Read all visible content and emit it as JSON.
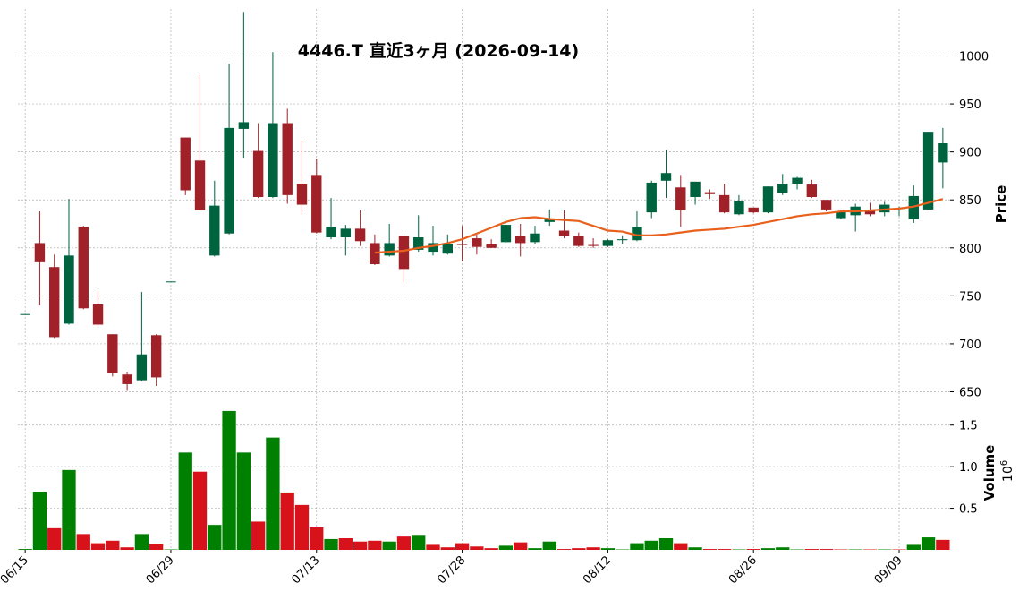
{
  "chart_data": {
    "type": "candlestick",
    "title": "4446.T  直近3ヶ月  (2026-09-14)",
    "categories": [
      "06/15",
      null,
      null,
      null,
      null,
      null,
      null,
      null,
      null,
      null,
      "06/29",
      null,
      null,
      null,
      null,
      null,
      null,
      null,
      null,
      null,
      "07/13",
      null,
      null,
      null,
      null,
      null,
      null,
      null,
      null,
      null,
      "07/28",
      null,
      null,
      null,
      null,
      null,
      null,
      null,
      null,
      null,
      "08/12",
      null,
      null,
      null,
      null,
      null,
      null,
      null,
      null,
      null,
      "08/26",
      null,
      null,
      null,
      null,
      null,
      null,
      null,
      null,
      null,
      "09/09",
      null,
      null,
      null
    ],
    "open": [
      731,
      805,
      780,
      721,
      822,
      741,
      710,
      668,
      662,
      709,
      765,
      915,
      891,
      792,
      815,
      924,
      901,
      853,
      930,
      867,
      876,
      811,
      811,
      820,
      805,
      792,
      812,
      798,
      796,
      794,
      804,
      810,
      804,
      806,
      812,
      806,
      827,
      818,
      812,
      803,
      802,
      808,
      808,
      837,
      870,
      863,
      853,
      858,
      855,
      835,
      842,
      837,
      857,
      867,
      866,
      850,
      831,
      834,
      839,
      837,
      839,
      830,
      840,
      889
    ],
    "high": [
      731,
      838,
      793,
      851,
      823,
      755,
      710,
      671,
      754,
      710,
      765,
      915,
      980,
      870,
      992,
      1046,
      930,
      1004,
      945,
      911,
      893,
      852,
      824,
      839,
      814,
      825,
      813,
      834,
      823,
      814,
      823,
      814,
      809,
      831,
      825,
      823,
      840,
      839,
      816,
      810,
      809,
      813,
      838,
      870,
      902,
      876,
      869,
      861,
      867,
      855,
      842,
      864,
      877,
      874,
      871,
      850,
      840,
      846,
      847,
      848,
      843,
      865,
      921,
      925
    ],
    "low": [
      731,
      740,
      706,
      720,
      736,
      717,
      666,
      651,
      661,
      656,
      765,
      855,
      839,
      791,
      814,
      894,
      852,
      852,
      846,
      835,
      815,
      809,
      792,
      802,
      782,
      791,
      764,
      796,
      792,
      793,
      786,
      793,
      800,
      805,
      791,
      804,
      823,
      810,
      801,
      800,
      801,
      804,
      807,
      831,
      852,
      822,
      845,
      851,
      836,
      834,
      836,
      836,
      855,
      861,
      852,
      838,
      830,
      817,
      833,
      833,
      833,
      826,
      839,
      862
    ],
    "close": [
      731,
      785,
      707,
      792,
      737,
      720,
      670,
      658,
      689,
      665,
      765,
      860,
      839,
      844,
      925,
      931,
      853,
      930,
      855,
      845,
      816,
      822,
      820,
      807,
      783,
      805,
      778,
      811,
      805,
      804,
      803,
      801,
      800,
      824,
      805,
      815,
      830,
      812,
      802,
      802,
      808,
      809,
      822,
      868,
      878,
      839,
      869,
      856,
      837,
      849,
      837,
      864,
      867,
      873,
      853,
      840,
      838,
      843,
      835,
      845,
      840,
      854,
      921,
      909
    ],
    "up_color": "#006340",
    "down_color": "#a02128",
    "ma": {
      "color": "#e8601c",
      "values": [
        null,
        null,
        null,
        null,
        null,
        null,
        null,
        null,
        null,
        null,
        null,
        null,
        null,
        null,
        null,
        null,
        null,
        null,
        null,
        null,
        null,
        null,
        null,
        null,
        795,
        796,
        797,
        800,
        802,
        805,
        809,
        815,
        821,
        827,
        831,
        832,
        830,
        829,
        828,
        823,
        818,
        817,
        813,
        813,
        814,
        816,
        818,
        819,
        820,
        822,
        824,
        827,
        830,
        833,
        835,
        836,
        838,
        838,
        839,
        840,
        841,
        843,
        847,
        851
      ]
    },
    "volume": {
      "up_color": "#008000",
      "down_color": "#d8121a",
      "values": [
        0.01,
        0.7,
        0.26,
        0.96,
        0.19,
        0.08,
        0.11,
        0.03,
        0.19,
        0.07,
        0.005,
        1.17,
        0.94,
        0.3,
        1.67,
        1.17,
        0.34,
        1.35,
        0.69,
        0.54,
        0.27,
        0.13,
        0.14,
        0.1,
        0.11,
        0.1,
        0.16,
        0.18,
        0.06,
        0.03,
        0.08,
        0.04,
        0.02,
        0.05,
        0.09,
        0.02,
        0.1,
        0.01,
        0.02,
        0.03,
        0.02,
        0.005,
        0.08,
        0.11,
        0.14,
        0.08,
        0.03,
        0.01,
        0.01,
        0.005,
        0.01,
        0.02,
        0.03,
        0.005,
        0.01,
        0.01,
        0.005,
        0.005,
        0.005,
        0.005,
        0.005,
        0.06,
        0.15,
        0.12
      ]
    },
    "ylim": [
      643,
      1049
    ],
    "yticks": [
      650,
      700,
      750,
      800,
      850,
      900,
      950,
      1000
    ],
    "ylabel": "Price",
    "y2lim": [
      0,
      1.82
    ],
    "y2ticks": [
      0.5,
      {
        "value": 1,
        "label": "1.0"
      },
      1.5
    ],
    "y2label": "Volume",
    "y2_scale": {
      "base": "10",
      "exponent": "6"
    },
    "grid": true
  }
}
